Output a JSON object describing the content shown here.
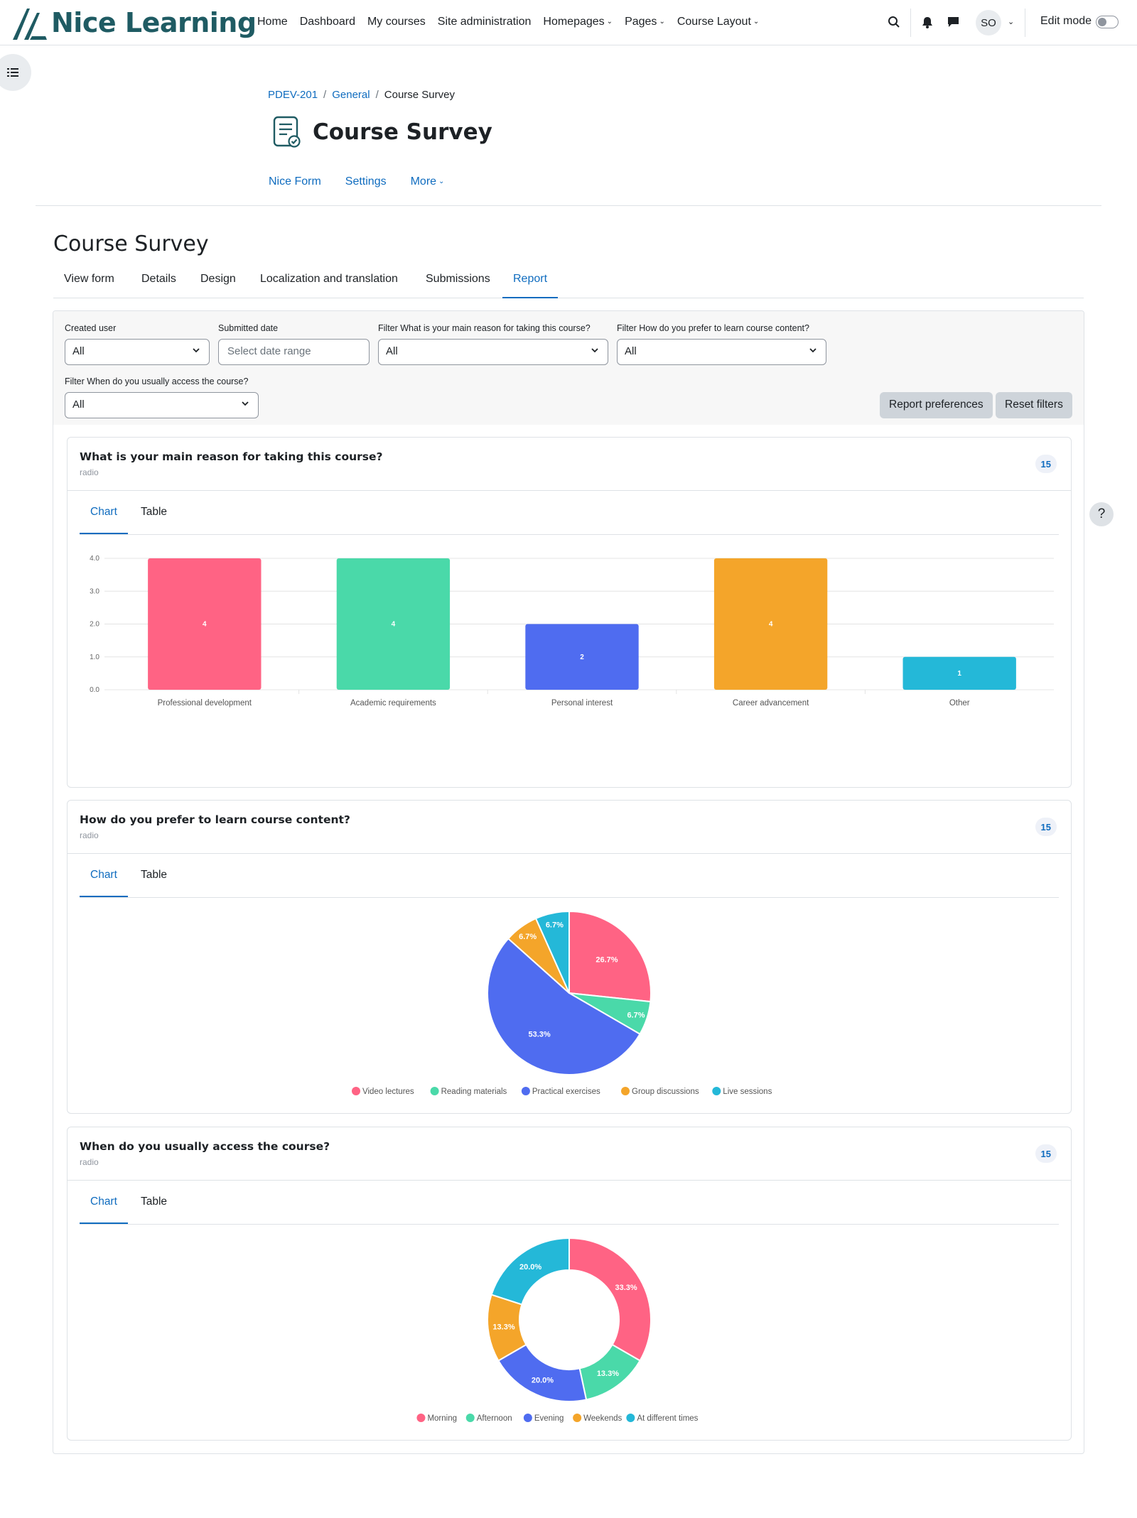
{
  "brand": {
    "name": "Nice Learning"
  },
  "nav": {
    "links": [
      "Home",
      "Dashboard",
      "My courses",
      "Site administration"
    ],
    "dropdowns": [
      "Homepages",
      "Pages",
      "Course Layout"
    ],
    "user_initials": "SO",
    "edit_mode_label": "Edit mode"
  },
  "breadcrumb": {
    "items": [
      "PDEV-201",
      "General",
      "Course Survey"
    ]
  },
  "page": {
    "title": "Course Survey",
    "secondary_nav": [
      "Nice Form",
      "Settings"
    ],
    "more_label": "More"
  },
  "form": {
    "title": "Course Survey",
    "tabs": [
      "View form",
      "Details",
      "Design",
      "Localization and translation",
      "Submissions",
      "Report"
    ],
    "active_tab": "Report"
  },
  "filters": {
    "created_user": {
      "label": "Created user",
      "value": "All"
    },
    "submitted_date": {
      "label": "Submitted date",
      "placeholder": "Select date range"
    },
    "q1_filter": {
      "label": "Filter What is your main reason for taking this course?",
      "value": "All"
    },
    "q2_filter": {
      "label": "Filter How do you prefer to learn course content?",
      "value": "All"
    },
    "q3_filter": {
      "label": "Filter When do you usually access the course?",
      "value": "All"
    },
    "report_preferences_label": "Report preferences",
    "reset_filters_label": "Reset filters"
  },
  "questions": [
    {
      "title": "What is your main reason for taking this course?",
      "type": "radio",
      "count": "15",
      "tab_chart": "Chart",
      "tab_table": "Table"
    },
    {
      "title": "How do you prefer to learn course content?",
      "type": "radio",
      "count": "15",
      "tab_chart": "Chart",
      "tab_table": "Table"
    },
    {
      "title": "When do you usually access the course?",
      "type": "radio",
      "count": "15",
      "tab_chart": "Chart",
      "tab_table": "Table"
    }
  ],
  "help_label": "?",
  "colors": {
    "red": "#ff6384",
    "green": "#4ad9a9",
    "blue": "#4f6cf0",
    "orange": "#f4a52a",
    "cyan": "#24b8d8",
    "link": "#0f6cbf"
  },
  "chart_data": [
    {
      "type": "bar",
      "categories": [
        "Professional development",
        "Academic requirements",
        "Personal interest",
        "Career advancement",
        "Other"
      ],
      "values": [
        4,
        4,
        2,
        4,
        1
      ],
      "colors": [
        "#ff6384",
        "#4ad9a9",
        "#4f6cf0",
        "#f4a52a",
        "#24b8d8"
      ],
      "ylim": [
        0,
        4
      ],
      "yticks": [
        "0.0",
        "1.0",
        "2.0",
        "3.0",
        "4.0"
      ],
      "grid": true
    },
    {
      "type": "pie",
      "categories": [
        "Video lectures",
        "Reading materials",
        "Practical exercises",
        "Group discussions",
        "Live sessions"
      ],
      "values": [
        26.7,
        6.7,
        53.3,
        6.7,
        6.7
      ],
      "labels": [
        "26.7%",
        "6.7%",
        "53.3%",
        "6.7%",
        "6.7%"
      ],
      "colors": [
        "#ff6384",
        "#4ad9a9",
        "#4f6cf0",
        "#f4a52a",
        "#24b8d8"
      ],
      "legend": "bottom"
    },
    {
      "type": "pie",
      "donut": true,
      "categories": [
        "Morning",
        "Afternoon",
        "Evening",
        "Weekends",
        "At different times"
      ],
      "values": [
        33.3,
        13.3,
        20.0,
        13.3,
        20.0
      ],
      "labels": [
        "33.3%",
        "13.3%",
        "20.0%",
        "13.3%",
        "20.0%"
      ],
      "colors": [
        "#ff6384",
        "#4ad9a9",
        "#4f6cf0",
        "#f4a52a",
        "#24b8d8"
      ],
      "legend": "bottom"
    }
  ]
}
